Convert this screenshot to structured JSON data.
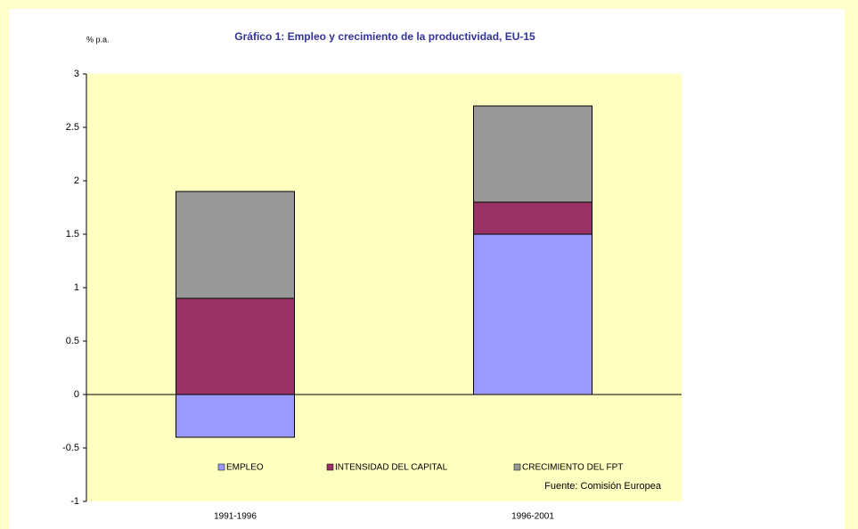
{
  "chart_data": {
    "type": "stacked_bar",
    "title": "Gráfico 1: Empleo y crecimiento de la productividad, EU-15",
    "unit_label": "% p.a.",
    "source": "Fuente: Comisión Europea",
    "categories": [
      "1991-1996",
      "1996-2001"
    ],
    "series": [
      {
        "name": "EMPLEO",
        "color": "#9999ff",
        "values": [
          -0.4,
          1.5
        ]
      },
      {
        "name": "INTENSIDAD DEL CAPITAL",
        "color": "#993366",
        "values": [
          0.9,
          0.3
        ]
      },
      {
        "name": "CRECIMIENTO DEL FPT",
        "color": "#999999",
        "values": [
          1.0,
          0.9
        ]
      }
    ],
    "ylim": [
      -1,
      3
    ],
    "yticks": [
      -1,
      -0.5,
      0,
      0.5,
      1,
      1.5,
      2,
      2.5,
      3
    ],
    "grid": false,
    "legend": "bottom"
  }
}
